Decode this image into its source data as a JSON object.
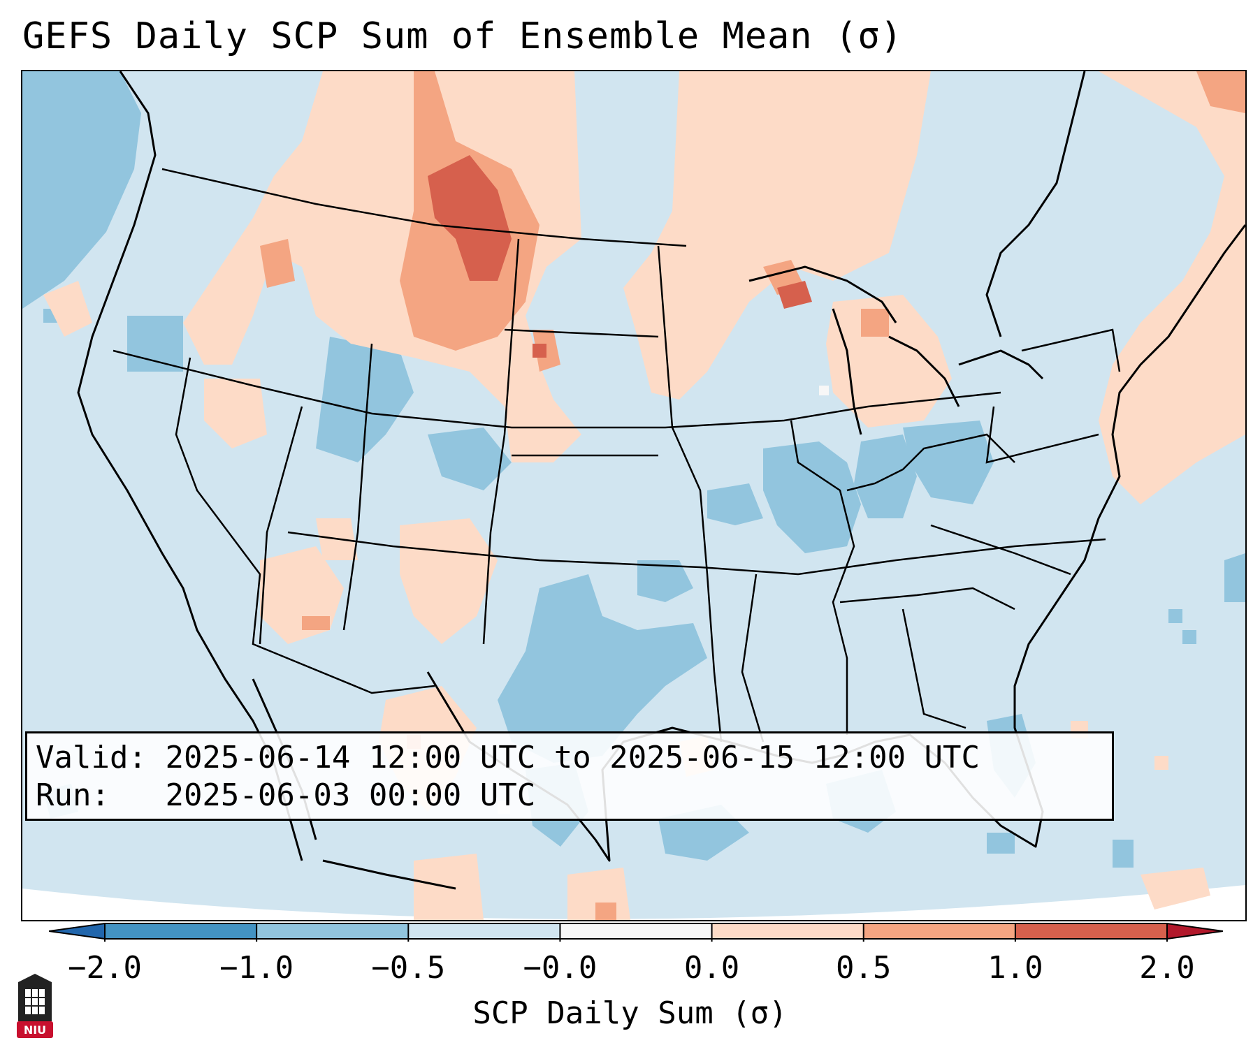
{
  "title": "GEFS Daily SCP Sum of Ensemble Mean (σ)",
  "info": {
    "valid_label": "Valid:",
    "valid_value": "2025-06-14 12:00 UTC to 2025-06-15 12:00 UTC",
    "run_label": "Run:",
    "run_value": "2025-06-03 00:00 UTC"
  },
  "colorbar": {
    "label": "SCP Daily Sum (σ)",
    "ticks": [
      "−2.0",
      "−1.0",
      "−0.5",
      "−0.0",
      "0.0",
      "0.5",
      "1.0",
      "2.0"
    ],
    "bins": [
      {
        "range": "-2.0 to -1.0",
        "color": "#4393c3"
      },
      {
        "range": "-1.0 to -0.5",
        "color": "#92c5de"
      },
      {
        "range": "-0.5 to -0.0",
        "color": "#d1e5f0"
      },
      {
        "range": "-0.0 to 0.0",
        "color": "#f7f7f7"
      },
      {
        "range": "0.0 to 0.5",
        "color": "#fddbc7"
      },
      {
        "range": "0.5 to 1.0",
        "color": "#f4a582"
      },
      {
        "range": "1.0 to 2.0",
        "color": "#d6604d"
      }
    ],
    "under_color": "#2166ac",
    "over_color": "#b2182b"
  },
  "logo": {
    "text": "NIU",
    "color": "#c8102e"
  }
}
